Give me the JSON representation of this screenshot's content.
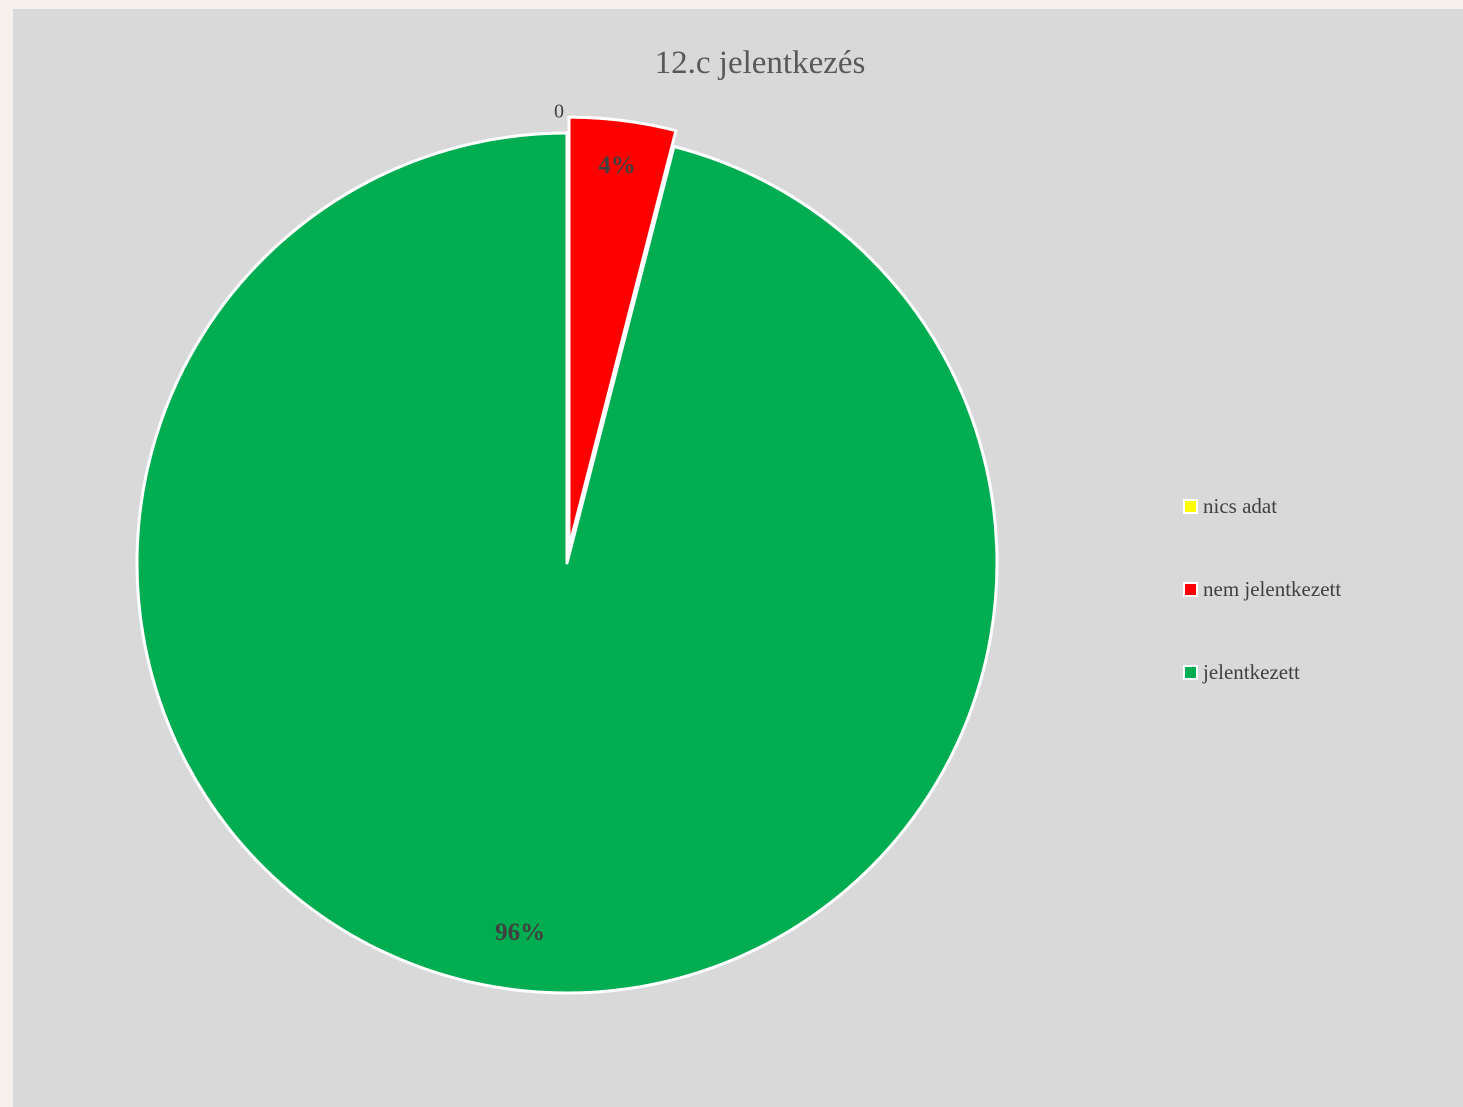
{
  "chart_data": {
    "type": "pie",
    "title": "12.c jelentkezés",
    "categories": [
      "nics adat",
      "nem jelentkezett",
      "jelentkezett"
    ],
    "values": [
      0,
      4,
      96
    ],
    "labels": [
      "0",
      "4%",
      "96%"
    ],
    "colors": [
      "#ffff00",
      "#ff0000",
      "#00ad50"
    ],
    "legend_position": "right"
  }
}
